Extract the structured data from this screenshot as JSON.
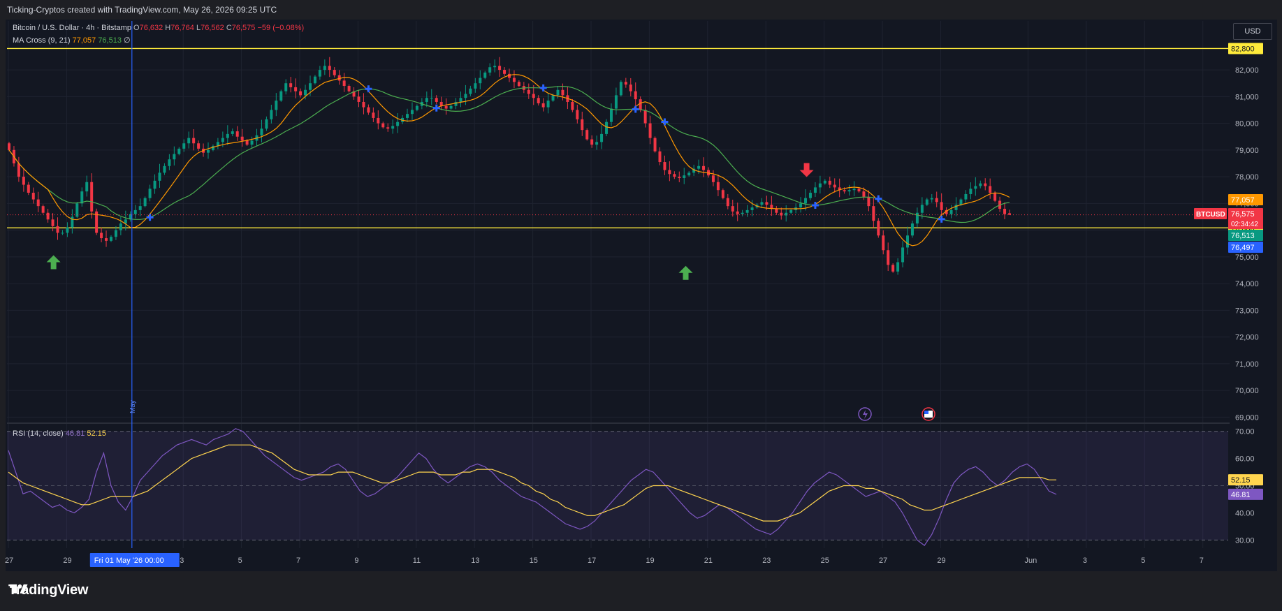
{
  "header": {
    "attribution": "Ticking-Cryptos created with TradingView.com, May 26, 2026 09:25 UTC"
  },
  "legend": {
    "symbol": "Bitcoin / U.S. Dollar · 4h · Bitstamp",
    "o_label": "O",
    "o_value": "76,632",
    "h_label": "H",
    "h_value": "76,764",
    "l_label": "L",
    "l_value": "76,562",
    "c_label": "C",
    "c_value": "76,575",
    "change": "−59 (−0.08%)",
    "ma_label": "MA Cross (9, 21)",
    "ma_fast_value": "77,057",
    "ma_slow_value": "76,513",
    "ma_extra": "∅",
    "rsi_label": "RSI (14, close)",
    "rsi_value": "46.81",
    "rsi_ma_value": "52.15"
  },
  "currency_button": "USD",
  "footer": {
    "logo_text": "TradingView"
  },
  "colors": {
    "up": "#089981",
    "down": "#f23645",
    "ma_fast": "#ff9800",
    "ma_slow": "#4caf50",
    "rsi": "#7e57c2",
    "rsi_ma": "#ffd54f",
    "level": "#ffeb3b",
    "cross": "#2962ff"
  },
  "chart_data": [
    {
      "type": "candlestick",
      "title": "Bitcoin / U.S. Dollar · 4h · Bitstamp",
      "symbol": "BTCUSD",
      "x_start_day": 27.0,
      "bar_days": 0.1667,
      "last_price": 76575,
      "countdown": "02:34:42",
      "ylim": [
        68800,
        83100
      ],
      "y_ticks": [
        69000,
        70000,
        71000,
        72000,
        73000,
        74000,
        75000,
        76000,
        77000,
        78000,
        79000,
        80000,
        81000,
        82000
      ],
      "y_tick_labels": [
        "69,000",
        "70,000",
        "71,000",
        "72,000",
        "73,000",
        "74,000",
        "75,000",
        "76,000",
        "77,000",
        "78,000",
        "79,000",
        "80,000",
        "81,000",
        "82,000"
      ],
      "x_ticks": [
        {
          "day": 27,
          "label": "27"
        },
        {
          "day": 29,
          "label": "29"
        },
        {
          "day": 33,
          "label": "3"
        },
        {
          "day": 35,
          "label": "5"
        },
        {
          "day": 37,
          "label": "7"
        },
        {
          "day": 39,
          "label": "9"
        },
        {
          "day": 41,
          "label": "11"
        },
        {
          "day": 43,
          "label": "13"
        },
        {
          "day": 45,
          "label": "15"
        },
        {
          "day": 47,
          "label": "17"
        },
        {
          "day": 49,
          "label": "19"
        },
        {
          "day": 51,
          "label": "21"
        },
        {
          "day": 53,
          "label": "23"
        },
        {
          "day": 55,
          "label": "25"
        },
        {
          "day": 57,
          "label": "27"
        },
        {
          "day": 59,
          "label": "29"
        },
        {
          "day": 62,
          "label": "Jun"
        },
        {
          "day": 64,
          "label": "3"
        },
        {
          "day": 66,
          "label": "5"
        },
        {
          "day": 68,
          "label": "7"
        }
      ],
      "crosshair": {
        "day": 31,
        "label": "Fri 01 May '26   00:00",
        "vertical_label": "May"
      },
      "horizontal_levels": [
        82800,
        76086
      ],
      "level_labels": [
        "82,800",
        "76,086"
      ],
      "price_labels": [
        {
          "value": 77057,
          "text": "77,057",
          "color": "#ff9800"
        },
        {
          "value": 76513,
          "text": "76,513",
          "color": "#089981"
        },
        {
          "value": 76497,
          "text": "76,497",
          "color": "#2962ff"
        },
        {
          "value": 76086,
          "text": "76,086",
          "color": "#ffeb3b"
        }
      ],
      "closes": [
        79000,
        78500,
        78000,
        77700,
        77400,
        77150,
        76900,
        76650,
        76400,
        76150,
        75900,
        75900,
        76100,
        76500,
        77000,
        77450,
        77800,
        76700,
        75900,
        75700,
        75600,
        75750,
        76000,
        76250,
        76400,
        76600,
        76750,
        76900,
        77200,
        77550,
        77850,
        78150,
        78400,
        78650,
        78850,
        79050,
        79250,
        79450,
        79250,
        79050,
        78900,
        79000,
        79150,
        79300,
        79450,
        79600,
        79700,
        79500,
        79350,
        79200,
        79350,
        79550,
        79800,
        80150,
        80500,
        80850,
        81200,
        81500,
        81350,
        81200,
        81050,
        81250,
        81500,
        81750,
        82000,
        82150,
        82000,
        81800,
        81600,
        81400,
        81200,
        81000,
        80800,
        80600,
        80400,
        80200,
        80000,
        79850,
        79800,
        79900,
        80050,
        80200,
        80350,
        80500,
        80650,
        80800,
        80950,
        80950,
        80800,
        80650,
        80550,
        80650,
        80800,
        80950,
        81100,
        81300,
        81500,
        81700,
        81900,
        82100,
        82150,
        82000,
        81850,
        81700,
        81550,
        81400,
        81250,
        81100,
        80950,
        80750,
        80600,
        80850,
        81050,
        81250,
        81050,
        80800,
        80500,
        80150,
        79750,
        79400,
        79200,
        79300,
        79600,
        80050,
        80550,
        81050,
        81550,
        81450,
        81200,
        80900,
        80500,
        80000,
        79450,
        78950,
        78550,
        78250,
        78100,
        78000,
        77950,
        78050,
        78150,
        78300,
        78400,
        78250,
        78050,
        77800,
        77500,
        77200,
        76900,
        76700,
        76600,
        76650,
        76750,
        76850,
        76950,
        77050,
        76950,
        76800,
        76650,
        76550,
        76650,
        76750,
        76850,
        77000,
        77200,
        77400,
        77600,
        77750,
        77850,
        77700,
        77600,
        77500,
        77450,
        77500,
        77550,
        77450,
        77250,
        76900,
        76350,
        75800,
        75250,
        74700,
        74450,
        74800,
        75350,
        75800,
        76250,
        76650,
        76950,
        77150,
        77200,
        77050,
        76750,
        76600,
        76750,
        76950,
        77150,
        77350,
        77550,
        77650,
        77750,
        77650,
        77400,
        77100,
        76800,
        76600,
        76575
      ],
      "ohlc_last": {
        "open": 76632,
        "high": 76764,
        "low": 76562,
        "close": 76575
      },
      "ma_fast_name": "MA 9",
      "ma_slow_name": "MA 21",
      "signals": [
        {
          "day": 28.55,
          "type": "buy",
          "price": 74800
        },
        {
          "day": 50.25,
          "type": "buy",
          "price": 74400
        },
        {
          "day": 54.4,
          "type": "sell",
          "price": 78250
        }
      ]
    },
    {
      "type": "line",
      "title": "RSI (14, close)",
      "ylim": [
        27,
        72.5
      ],
      "y_ticks": [
        30,
        40,
        50,
        60,
        70
      ],
      "y_tick_labels": [
        "30.00",
        "40.00",
        "50.00",
        "60.00",
        "70.00"
      ],
      "band": [
        30,
        70
      ],
      "mid": 50,
      "series": [
        {
          "name": "RSI",
          "values": [
            63,
            55,
            47,
            48,
            46,
            44,
            42,
            43,
            41,
            40,
            42,
            45,
            55,
            62,
            50,
            44,
            41,
            46,
            52,
            55,
            58,
            61,
            63,
            65,
            66,
            67,
            66,
            65,
            67,
            68,
            69,
            71,
            70,
            67,
            64,
            61,
            59,
            57,
            55,
            53,
            52,
            53,
            54,
            55,
            57,
            58,
            56,
            52,
            48,
            46,
            47,
            49,
            51,
            53,
            56,
            59,
            62,
            60,
            56,
            53,
            51,
            53,
            55,
            57,
            58,
            57,
            55,
            52,
            50,
            48,
            46,
            45,
            44,
            42,
            40,
            38,
            36,
            35,
            34,
            35,
            37,
            40,
            43,
            46,
            49,
            52,
            54,
            56,
            55,
            52,
            49,
            46,
            43,
            40,
            38,
            39,
            41,
            43,
            42,
            40,
            38,
            36,
            34,
            33,
            32,
            34,
            37,
            40,
            44,
            48,
            51,
            53,
            55,
            54,
            52,
            50,
            48,
            46,
            47,
            48,
            46,
            44,
            40,
            35,
            30,
            28,
            32,
            38,
            45,
            51,
            54,
            56,
            57,
            55,
            52,
            50,
            52,
            55,
            57,
            58,
            56,
            52,
            48,
            46.81
          ]
        },
        {
          "name": "RSI-based MA",
          "values": [
            55,
            53,
            51,
            50,
            49,
            48,
            47,
            46,
            45,
            44,
            43,
            43,
            44,
            45,
            46,
            46,
            46,
            46,
            47,
            48,
            50,
            52,
            54,
            56,
            58,
            60,
            61,
            62,
            63,
            64,
            65,
            65,
            65,
            65,
            64,
            63,
            62,
            60,
            58,
            56,
            55,
            54,
            54,
            54,
            54,
            55,
            55,
            55,
            54,
            53,
            52,
            51,
            51,
            52,
            53,
            54,
            55,
            55,
            55,
            54,
            54,
            54,
            55,
            55,
            56,
            56,
            56,
            55,
            54,
            53,
            51,
            50,
            48,
            47,
            45,
            44,
            42,
            41,
            40,
            39,
            39,
            40,
            41,
            42,
            43,
            45,
            47,
            49,
            50,
            50,
            50,
            49,
            48,
            47,
            46,
            45,
            44,
            43,
            42,
            41,
            40,
            39,
            38,
            37,
            37,
            37,
            38,
            39,
            40,
            42,
            44,
            46,
            48,
            49,
            50,
            50,
            50,
            49,
            49,
            48,
            47,
            46,
            45,
            43,
            42,
            41,
            41,
            42,
            43,
            44,
            45,
            46,
            47,
            48,
            49,
            50,
            51,
            52,
            53,
            53,
            53,
            53,
            52.15,
            52.15
          ]
        }
      ]
    }
  ]
}
